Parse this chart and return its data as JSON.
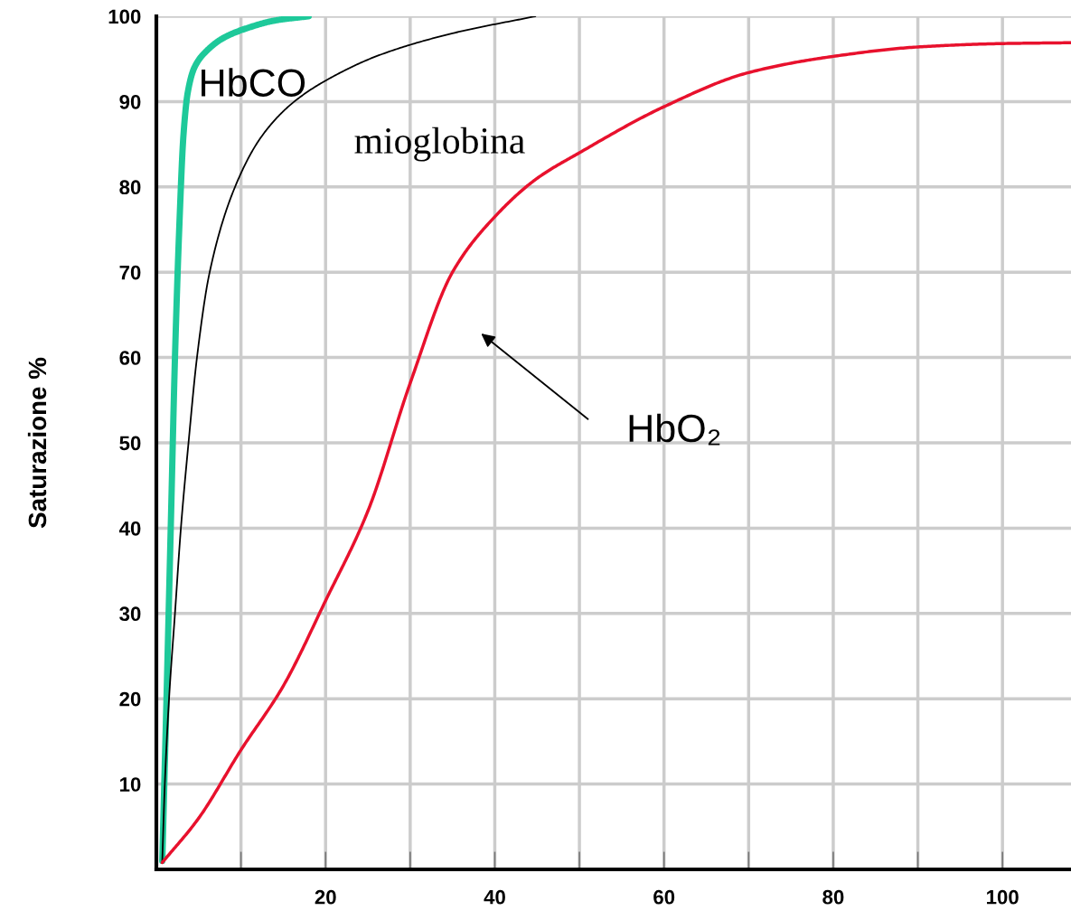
{
  "chart_data": {
    "type": "line",
    "ylabel": "Saturazione %",
    "xlim": [
      0,
      108.1
    ],
    "ylim": [
      0,
      100
    ],
    "xticks": [
      {
        "value": 10,
        "label": null
      },
      20,
      {
        "value": 30,
        "label": null
      },
      40,
      {
        "value": 50,
        "label": null
      },
      60,
      {
        "value": 70,
        "label": null
      },
      80,
      {
        "value": 90,
        "label": null
      },
      100
    ],
    "yticks": [
      10,
      20,
      30,
      40,
      50,
      60,
      70,
      80,
      90,
      100
    ],
    "annotations": [
      "HbCO",
      "mioglobina",
      "HbO₂"
    ],
    "grid": true,
    "marker": "none",
    "line_style": "solid",
    "series": [
      {
        "color": "#1ec99a",
        "x": [
          0.7,
          1.2,
          1.7,
          2.2,
          2.7,
          3.2,
          3.7,
          4.5,
          6,
          8,
          11,
          14,
          18
        ],
        "values": [
          1,
          20,
          40,
          60,
          75,
          86,
          91,
          94,
          96,
          97.5,
          98.7,
          99.5,
          100
        ]
      },
      {
        "color": "#000000",
        "x": [
          0.7,
          1.0,
          1.5,
          2.2,
          2.9,
          3.8,
          4.8,
          6.3,
          9.3,
          12.5,
          16.3,
          21,
          26.5,
          35,
          44.8
        ],
        "values": [
          1,
          10,
          20,
          30,
          40,
          50,
          60,
          70,
          80,
          86,
          90,
          93,
          95.5,
          98,
          100
        ]
      },
      {
        "color": "#e8112d",
        "x": [
          0.7,
          5,
          10,
          15,
          20,
          25,
          30,
          35,
          40,
          45,
          50,
          60,
          70,
          80,
          90,
          100,
          108.1
        ],
        "values": [
          0.8,
          6,
          14,
          21.5,
          31.5,
          42,
          57,
          70,
          76.5,
          81,
          84,
          89.4,
          93.4,
          95.3,
          96.4,
          96.8,
          96.9
        ]
      }
    ]
  }
}
